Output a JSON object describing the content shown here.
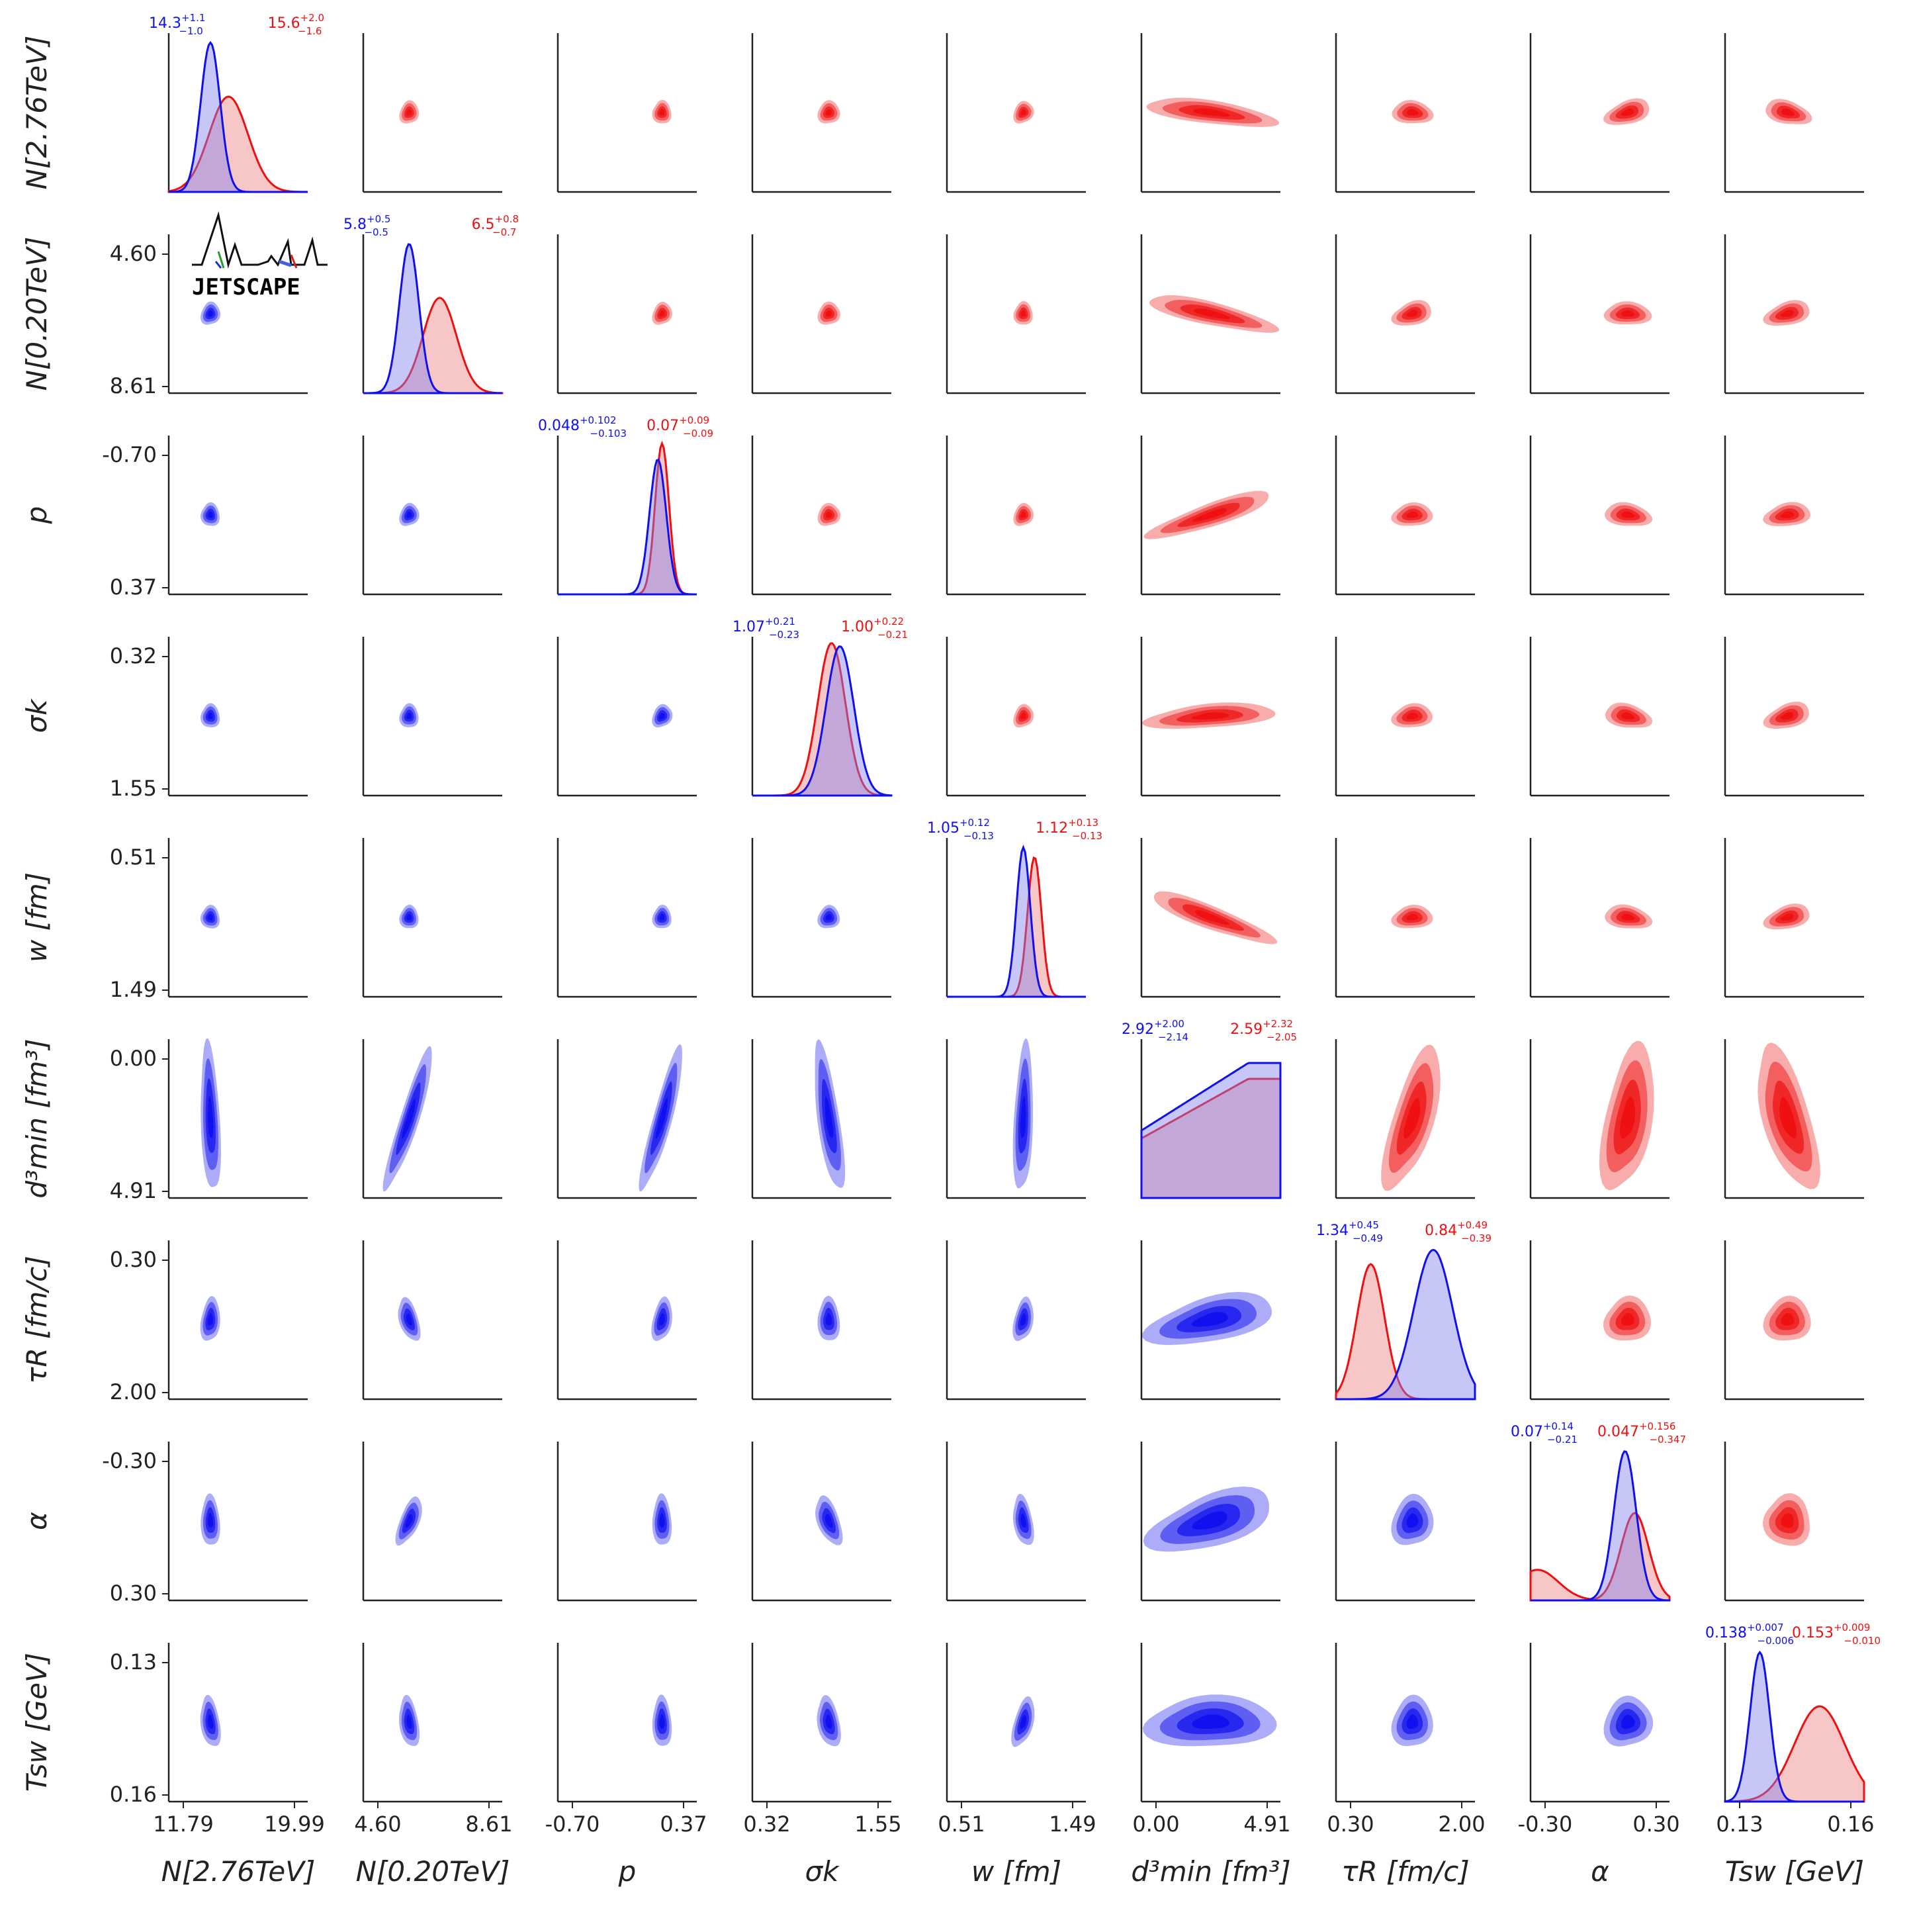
{
  "logo": {
    "text": "JETSCAPE"
  },
  "colors": {
    "blue": "#1010ee",
    "red": "#ee1010",
    "axis": "#222222",
    "text": "#222222"
  },
  "chart_data": {
    "type": "corner",
    "description_note": "Posterior corner plot of model parameters; lower triangle blue, upper triangle red; diagonals are 1D marginals",
    "parameters": [
      {
        "key": "N276",
        "label": "N[2.76TeV]",
        "ticks": [
          "11.79",
          "19.99"
        ],
        "range": [
          11.79,
          19.99
        ]
      },
      {
        "key": "N020",
        "label": "N[0.20TeV]",
        "ticks": [
          "4.60",
          "8.61"
        ],
        "range": [
          4.6,
          8.61
        ]
      },
      {
        "key": "p",
        "label": "p",
        "ticks": [
          "-0.70",
          "0.37"
        ],
        "range": [
          -0.7,
          0.37
        ]
      },
      {
        "key": "sigk",
        "label": "σk",
        "ticks": [
          "0.32",
          "1.55"
        ],
        "range": [
          0.32,
          1.55
        ]
      },
      {
        "key": "w",
        "label": "w [fm]",
        "ticks": [
          "0.51",
          "1.49"
        ],
        "range": [
          0.51,
          1.49
        ]
      },
      {
        "key": "dmin",
        "label": "d³min [fm³]",
        "ticks": [
          "0.00",
          "4.91"
        ],
        "range": [
          0.0,
          4.91
        ]
      },
      {
        "key": "tauR",
        "label": "τR [fm/c]",
        "ticks": [
          "0.30",
          "2.00"
        ],
        "range": [
          0.3,
          2.0
        ]
      },
      {
        "key": "alpha",
        "label": "α",
        "ticks": [
          "-0.30",
          "0.30"
        ],
        "range": [
          -0.3,
          0.3
        ]
      },
      {
        "key": "Tsw",
        "label": "Tsw [GeV]",
        "ticks": [
          "0.13",
          "0.16"
        ],
        "range": [
          0.13,
          0.16
        ]
      }
    ],
    "estimates": [
      {
        "blue": {
          "value": "14.3",
          "plus": "+1.1",
          "minus": "−1.0"
        },
        "red": {
          "value": "15.6",
          "plus": "+2.0",
          "minus": "−1.6"
        }
      },
      {
        "blue": {
          "value": "5.8",
          "plus": "+0.5",
          "minus": "−0.5"
        },
        "red": {
          "value": "6.5",
          "plus": "+0.8",
          "minus": "−0.7"
        }
      },
      {
        "blue": {
          "value": "0.048",
          "plus": "+0.102",
          "minus": "−0.103"
        },
        "red": {
          "value": "0.07",
          "plus": "+0.09",
          "minus": "−0.09"
        }
      },
      {
        "blue": {
          "value": "1.07",
          "plus": "+0.21",
          "minus": "−0.23"
        },
        "red": {
          "value": "1.00",
          "plus": "+0.22",
          "minus": "−0.21"
        }
      },
      {
        "blue": {
          "value": "1.05",
          "plus": "+0.12",
          "minus": "−0.13"
        },
        "red": {
          "value": "1.12",
          "plus": "+0.13",
          "minus": "−0.13"
        }
      },
      {
        "blue": {
          "value": "2.92",
          "plus": "+2.00",
          "minus": "−2.14"
        },
        "red": {
          "value": "2.59",
          "plus": "+2.32",
          "minus": "−2.05"
        }
      },
      {
        "blue": {
          "value": "1.34",
          "plus": "+0.45",
          "minus": "−0.49"
        },
        "red": {
          "value": "0.84",
          "plus": "+0.49",
          "minus": "−0.39"
        }
      },
      {
        "blue": {
          "value": "0.07",
          "plus": "+0.14",
          "minus": "−0.21"
        },
        "red": {
          "value": "0.047",
          "plus": "+0.156",
          "minus": "−0.347"
        }
      },
      {
        "blue": {
          "value": "0.138",
          "plus": "+0.007",
          "minus": "−0.006"
        },
        "red": {
          "value": "0.153",
          "plus": "+0.009",
          "minus": "−0.010"
        }
      }
    ]
  }
}
